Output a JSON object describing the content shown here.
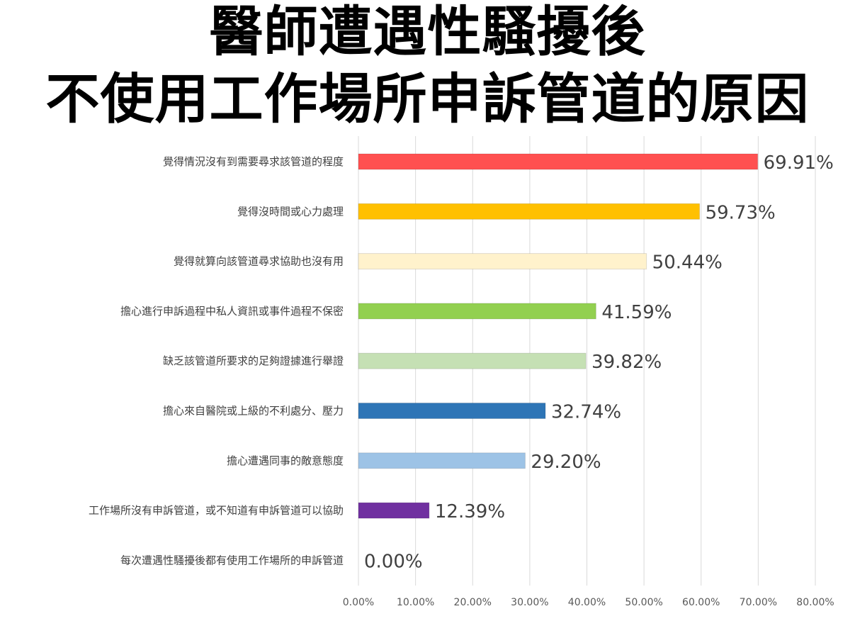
{
  "chart_data": {
    "type": "bar",
    "orientation": "horizontal",
    "title_lines": [
      "醫師遭遇性騷擾後",
      "不使用工作場所申訴管道的原因"
    ],
    "categories": [
      "覺得情況沒有到需要尋求該管道的程度",
      "覺得沒時間或心力處理",
      "覺得就算向該管道尋求協助也沒有用",
      "擔心進行申訴過程中私人資訊或事件過程不保密",
      "缺乏該管道所要求的足夠證據進行舉證",
      "擔心來自醫院或上級的不利處分、壓力",
      "擔心遭遇同事的敵意態度",
      "工作場所沒有申訴管道，或不知道有申訴管道可以協助",
      "每次遭遇性騷擾後都有使用工作場所的申訴管道"
    ],
    "values": [
      69.91,
      59.73,
      50.44,
      41.59,
      39.82,
      32.74,
      29.2,
      12.39,
      0.0
    ],
    "value_labels": [
      "69.91%",
      "59.73%",
      "50.44%",
      "41.59%",
      "39.82%",
      "32.74%",
      "29.20%",
      "12.39%",
      "0.00%"
    ],
    "bar_colors": [
      "#FF5050",
      "#FFC000",
      "#FFF2CC",
      "#92D050",
      "#C5E0B4",
      "#2E75B6",
      "#9DC3E6",
      "#7030A0",
      "#BFBFBF"
    ],
    "xlim": [
      0,
      80
    ],
    "x_ticks": [
      0,
      10,
      20,
      30,
      40,
      50,
      60,
      70,
      80
    ],
    "x_tick_labels": [
      "0.00%",
      "10.00%",
      "20.00%",
      "30.00%",
      "40.00%",
      "50.00%",
      "60.00%",
      "70.00%",
      "80.00%"
    ],
    "xlabel": "",
    "ylabel": "",
    "grid": true,
    "legend": "none",
    "gridline_color": "#D9D9D9",
    "text_color": "#404040"
  }
}
